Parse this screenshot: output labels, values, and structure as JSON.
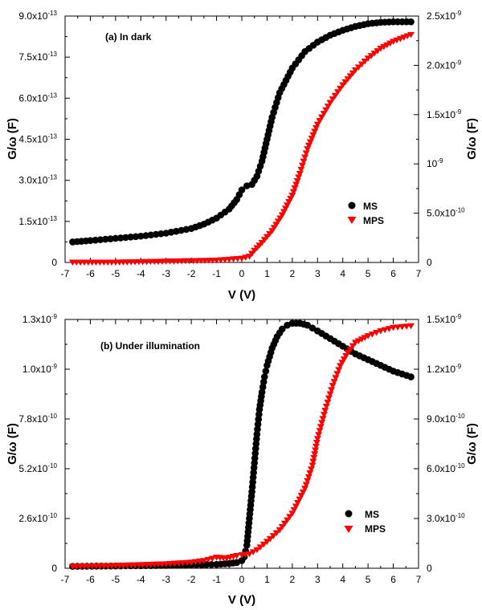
{
  "chart_data": [
    {
      "type": "scatter",
      "annotation": "(a) In dark",
      "xlabel": "V (V)",
      "ylabel_left": "G/ω (F)",
      "ylabel_right": "G/ω (F)",
      "xlim": [
        -7,
        7
      ],
      "ylim_left": [
        0,
        9e-13
      ],
      "ylim_right": [
        0,
        2.5e-09
      ],
      "x_ticks": [
        "-7",
        "-6",
        "-5",
        "-4",
        "-3",
        "-2",
        "-1",
        "0",
        "1",
        "2",
        "3",
        "4",
        "5",
        "6",
        "7"
      ],
      "y_left_ticks": [
        {
          "value": 0,
          "label": "0"
        },
        {
          "value": 1.5e-13,
          "label": "1.5x10",
          "exp": "-13"
        },
        {
          "value": 3e-13,
          "label": "3.0x10",
          "exp": "-13"
        },
        {
          "value": 4.5e-13,
          "label": "4.5x10",
          "exp": "-13"
        },
        {
          "value": 6e-13,
          "label": "6.0x10",
          "exp": "-13"
        },
        {
          "value": 7.5e-13,
          "label": "7.5x10",
          "exp": "-13"
        },
        {
          "value": 9e-13,
          "label": "9.0x10",
          "exp": "-13"
        }
      ],
      "y_right_ticks": [
        {
          "value": 0,
          "label": "0"
        },
        {
          "value": 5e-10,
          "label": "5.0x10",
          "exp": "-10"
        },
        {
          "value": 1e-09,
          "label": "10",
          "exp": "-9"
        },
        {
          "value": 1.5e-09,
          "label": "1.5x10",
          "exp": "-9"
        },
        {
          "value": 2e-09,
          "label": "2.0x10",
          "exp": "-9"
        },
        {
          "value": 2.5e-09,
          "label": "2.5x10",
          "exp": "-9"
        }
      ],
      "legend_position": "lower-right",
      "series": [
        {
          "name": "MS",
          "axis": "left",
          "marker": "circle",
          "color": "#000000",
          "x": [
            -6.7,
            -6,
            -5,
            -4,
            -3,
            -2,
            -1.5,
            -1,
            -0.5,
            -0.2,
            0,
            0.2,
            0.4,
            0.6,
            0.8,
            1.0,
            1.2,
            1.5,
            2,
            2.5,
            3,
            3.5,
            4,
            4.5,
            5,
            5.5,
            6,
            6.7
          ],
          "y": [
            7.5e-14,
            8e-14,
            8.8e-14,
            9.6e-14,
            1.07e-13,
            1.24e-13,
            1.4e-13,
            1.62e-13,
            1.95e-13,
            2.3e-13,
            2.65e-13,
            2.8e-13,
            2.85e-13,
            3.15e-13,
            3.7e-13,
            4.5e-13,
            5.3e-13,
            6.2e-13,
            7.1e-13,
            7.7e-13,
            8.05e-13,
            8.3e-13,
            8.48e-13,
            8.62e-13,
            8.72e-13,
            8.77e-13,
            8.79e-13,
            8.79e-13
          ]
        },
        {
          "name": "MPS",
          "axis": "right",
          "marker": "triangle-down",
          "color": "#ff0000",
          "x": [
            -6.7,
            -5,
            -3,
            -1,
            0,
            0.3,
            0.5,
            0.8,
            1.2,
            1.6,
            2.0,
            2.3,
            2.6,
            3.0,
            3.5,
            4.0,
            4.5,
            5.0,
            5.5,
            6.0,
            6.7
          ],
          "y": [
            0,
            0,
            1e-11,
            2e-11,
            4e-11,
            6e-11,
            1.2e-10,
            2e-10,
            3.2e-10,
            4.8e-10,
            6.8e-10,
            9e-10,
            1.15e-09,
            1.4e-09,
            1.62e-09,
            1.8e-09,
            1.95e-09,
            2.07e-09,
            2.17e-09,
            2.24e-09,
            2.31e-09
          ]
        }
      ]
    },
    {
      "type": "scatter",
      "annotation": "(b) Under illumination",
      "xlabel": "V (V)",
      "ylabel_left": "G/ω (F)",
      "ylabel_right": "G/ω (F)",
      "xlim": [
        -7,
        7
      ],
      "ylim_left": [
        0,
        1.3e-09
      ],
      "ylim_right": [
        0,
        1.5e-09
      ],
      "x_ticks": [
        "-7",
        "-6",
        "-5",
        "-4",
        "-3",
        "-2",
        "-1",
        "0",
        "1",
        "2",
        "3",
        "4",
        "5",
        "6",
        "7"
      ],
      "y_left_ticks": [
        {
          "value": 0,
          "label": "0"
        },
        {
          "value": 2.6e-10,
          "label": "2.6x10",
          "exp": "-10"
        },
        {
          "value": 5.2e-10,
          "label": "5.2x10",
          "exp": "-10"
        },
        {
          "value": 7.8e-10,
          "label": "7.8x10",
          "exp": "-10"
        },
        {
          "value": 1.04e-09,
          "label": "1.0x10",
          "exp": "-9"
        },
        {
          "value": 1.3e-09,
          "label": "1.3x10",
          "exp": "-9"
        }
      ],
      "y_right_ticks": [
        {
          "value": 0,
          "label": "0"
        },
        {
          "value": 3e-10,
          "label": "3.0x10",
          "exp": "-10"
        },
        {
          "value": 6e-10,
          "label": "6.0x10",
          "exp": "-10"
        },
        {
          "value": 9e-10,
          "label": "9.0x10",
          "exp": "-10"
        },
        {
          "value": 1.2e-09,
          "label": "1.2x10",
          "exp": "-9"
        },
        {
          "value": 1.5e-09,
          "label": "1.5x10",
          "exp": "-9"
        }
      ],
      "legend_position": "lower-right",
      "series": [
        {
          "name": "MS",
          "axis": "left",
          "marker": "circle",
          "color": "#000000",
          "x": [
            -6.7,
            -5,
            -3,
            -1,
            -0.5,
            -0.2,
            0,
            0.1,
            0.2,
            0.3,
            0.4,
            0.5,
            0.6,
            0.7,
            0.8,
            0.9,
            1.0,
            1.2,
            1.4,
            1.6,
            1.8,
            2.0,
            2.3,
            2.6,
            3.0,
            3.5,
            4.0,
            4.5,
            5.0,
            5.5,
            6.0,
            6.7
          ],
          "y": [
            1e-11,
            1.2e-11,
            1.5e-11,
            2e-11,
            2.5e-11,
            3e-11,
            4e-11,
            6e-11,
            1.2e-10,
            2.6e-10,
            4e-10,
            5.5e-10,
            7e-10,
            8.3e-10,
            9.2e-10,
            1e-09,
            1.06e-09,
            1.15e-09,
            1.21e-09,
            1.25e-09,
            1.27e-09,
            1.28e-09,
            1.28e-09,
            1.27e-09,
            1.24e-09,
            1.2e-09,
            1.16e-09,
            1.12e-09,
            1.09e-09,
            1.06e-09,
            1.03e-09,
            1e-09
          ]
        },
        {
          "name": "MPS",
          "axis": "right",
          "marker": "triangle-down",
          "color": "#ff0000",
          "x": [
            -6.7,
            -5,
            -3,
            -2,
            -1.5,
            -1.0,
            -0.6,
            -0.2,
            0,
            0.3,
            0.6,
            1.0,
            1.5,
            2.0,
            2.5,
            2.8,
            3.0,
            3.3,
            3.6,
            3.9,
            4.2,
            4.5,
            5.0,
            5.5,
            6.0,
            6.7
          ],
          "y": [
            1e-11,
            1.5e-11,
            2.5e-11,
            3.5e-11,
            4.5e-11,
            6.5e-11,
            6e-11,
            7.5e-11,
            8e-11,
            8.5e-11,
            1.1e-10,
            1.6e-10,
            2.3e-10,
            3.3e-10,
            4.8e-10,
            6.2e-10,
            7.8e-10,
            9.5e-10,
            1.1e-09,
            1.22e-09,
            1.3e-09,
            1.36e-09,
            1.4e-09,
            1.43e-09,
            1.45e-09,
            1.46e-09
          ]
        }
      ]
    }
  ]
}
